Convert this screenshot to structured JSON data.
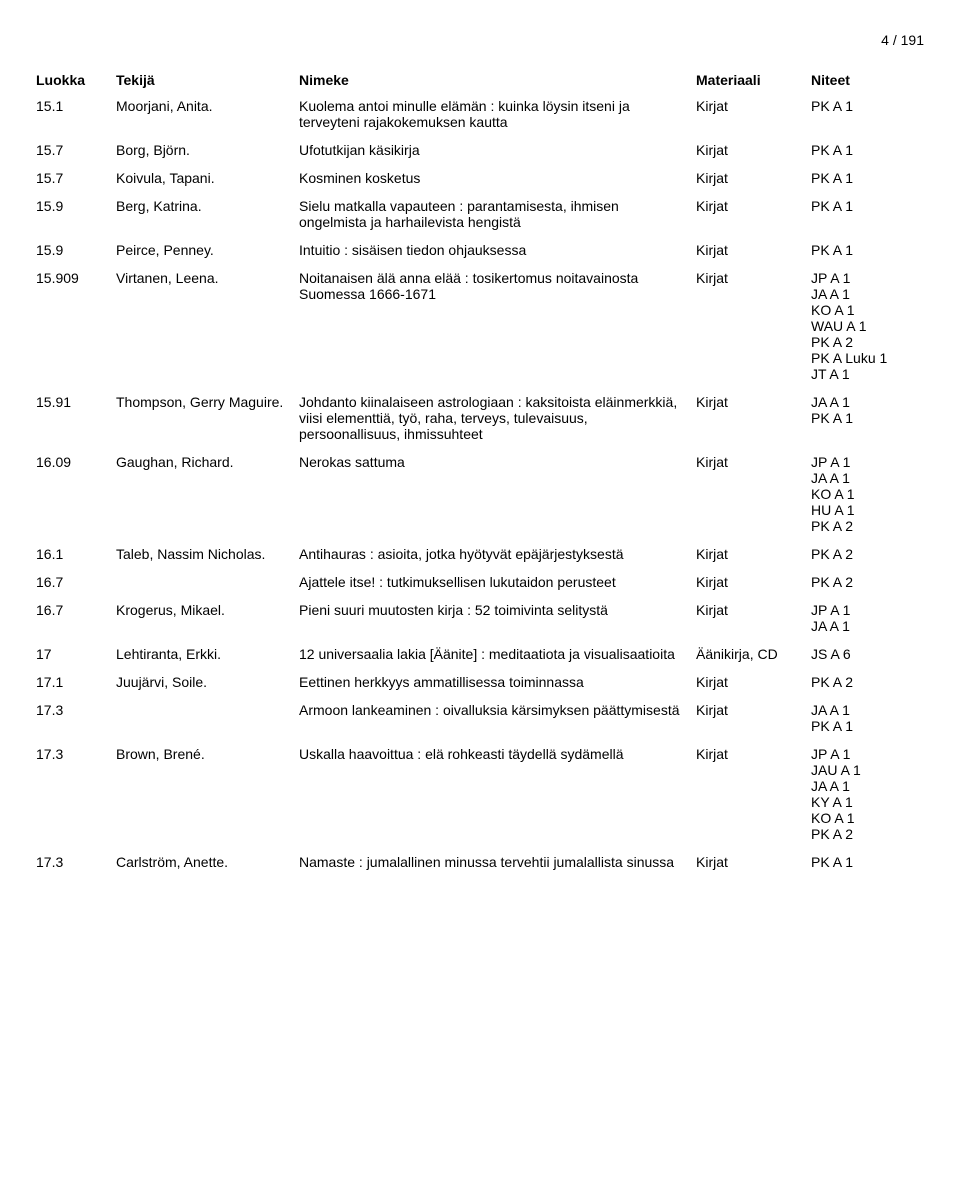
{
  "pageNumber": "4 / 191",
  "headers": {
    "class": "Luokka",
    "author": "Tekijä",
    "title": "Nimeke",
    "material": "Materiaali",
    "shelf": "Niteet"
  },
  "rows": [
    {
      "class": "15.1",
      "author": "Moorjani, Anita.",
      "title": "Kuolema antoi minulle elämän : kuinka löysin itseni ja terveyteni rajakokemuksen kautta",
      "material": "Kirjat",
      "shelves": [
        "PK A 1"
      ]
    },
    {
      "class": "15.7",
      "author": "Borg, Björn.",
      "title": "Ufotutkijan käsikirja",
      "material": "Kirjat",
      "shelves": [
        "PK A 1"
      ]
    },
    {
      "class": "15.7",
      "author": "Koivula, Tapani.",
      "title": "Kosminen kosketus",
      "material": "Kirjat",
      "shelves": [
        "PK A 1"
      ]
    },
    {
      "class": "15.9",
      "author": "Berg, Katrina.",
      "title": "Sielu matkalla vapauteen : parantamisesta, ihmisen ongelmista ja harhailevista hengistä",
      "material": "Kirjat",
      "shelves": [
        "PK A 1"
      ]
    },
    {
      "class": "15.9",
      "author": "Peirce, Penney.",
      "title": "Intuitio : sisäisen tiedon ohjauksessa",
      "material": "Kirjat",
      "shelves": [
        "PK A 1"
      ]
    },
    {
      "class": "15.909",
      "author": "Virtanen, Leena.",
      "title": "Noitanaisen älä anna elää : tosikertomus noitavainosta Suomessa 1666-1671",
      "material": "Kirjat",
      "shelves": [
        "JP A 1",
        "JA A 1",
        "KO A 1",
        "WAU A 1",
        "PK A 2",
        "PK A Luku 1",
        "JT A 1"
      ]
    },
    {
      "class": "15.91",
      "author": "Thompson, Gerry Maguire.",
      "title": "Johdanto kiinalaiseen astrologiaan : kaksitoista eläinmerkkiä, viisi elementtiä, työ, raha, terveys, tulevaisuus, persoonallisuus, ihmissuhteet",
      "material": "Kirjat",
      "shelves": [
        "JA A 1",
        "PK A 1"
      ]
    },
    {
      "class": "16.09",
      "author": "Gaughan, Richard.",
      "title": "Nerokas sattuma",
      "material": "Kirjat",
      "shelves": [
        "JP A 1",
        "JA A 1",
        "KO A 1",
        "HU A 1",
        "PK A 2"
      ]
    },
    {
      "class": "16.1",
      "author": "Taleb, Nassim Nicholas.",
      "title": "Antihauras : asioita, jotka hyötyvät epäjärjestyksestä",
      "material": "Kirjat",
      "shelves": [
        "PK A 2"
      ]
    },
    {
      "class": "16.7",
      "author": "",
      "title": "Ajattele itse! : tutkimuksellisen lukutaidon perusteet",
      "material": "Kirjat",
      "shelves": [
        "PK A 2"
      ]
    },
    {
      "class": "16.7",
      "author": "Krogerus, Mikael.",
      "title": "Pieni suuri muutosten kirja : 52 toimivinta selitystä",
      "material": "Kirjat",
      "shelves": [
        "JP A 1",
        "JA A 1"
      ]
    },
    {
      "class": "17",
      "author": "Lehtiranta, Erkki.",
      "title": "12 universaalia lakia [Äänite] : meditaatiota ja visualisaatioita",
      "material": "Äänikirja, CD",
      "shelves": [
        "JS A 6"
      ]
    },
    {
      "class": "17.1",
      "author": "Juujärvi, Soile.",
      "title": "Eettinen herkkyys ammatillisessa toiminnassa",
      "material": "Kirjat",
      "shelves": [
        "PK A 2"
      ]
    },
    {
      "class": "17.3",
      "author": "",
      "title": "Armoon lankeaminen : oivalluksia kärsimyksen päättymisestä",
      "material": "Kirjat",
      "shelves": [
        "JA A 1",
        "PK A 1"
      ]
    },
    {
      "class": "17.3",
      "author": "Brown, Brené.",
      "title": "Uskalla haavoittua : elä rohkeasti täydellä sydämellä",
      "material": "Kirjat",
      "shelves": [
        "JP A 1",
        "JAU A 1",
        "JA A 1",
        "KY A 1",
        "KO A 1",
        "PK A 2"
      ]
    },
    {
      "class": "17.3",
      "author": "Carlström, Anette.",
      "title": "Namaste : jumalallinen minussa tervehtii jumalallista sinussa",
      "material": "Kirjat",
      "shelves": [
        "PK A 1"
      ]
    }
  ]
}
